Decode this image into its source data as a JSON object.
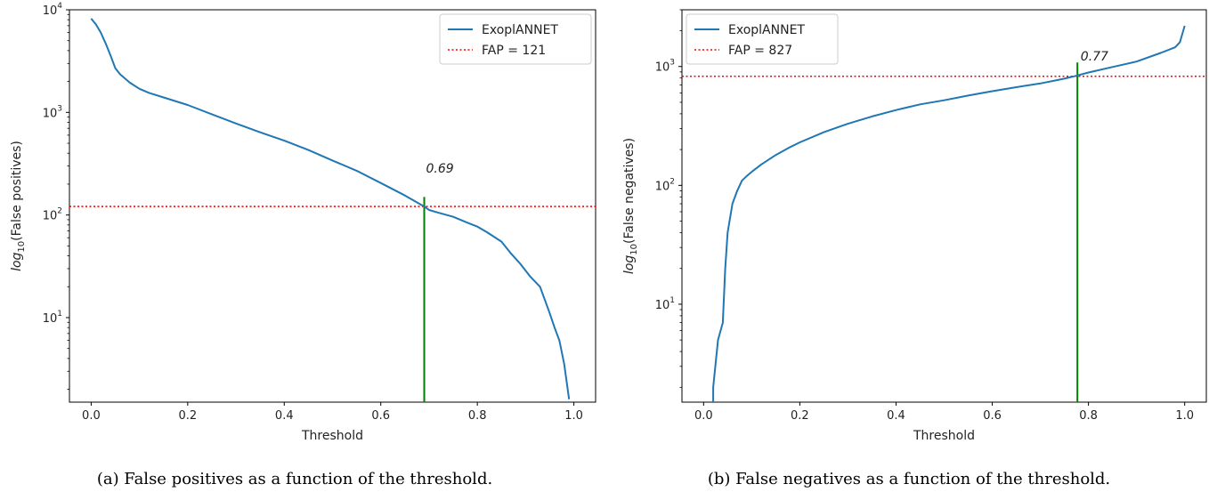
{
  "figures": [
    {
      "caption": "(a) False positives as a function of the threshold."
    },
    {
      "caption": "(b) False negatives as a function of the threshold."
    }
  ],
  "chart_data": [
    {
      "type": "line",
      "xlabel": "Threshold",
      "ylabel_prefix": "log",
      "ylabel_subscript": "10",
      "ylabel_suffix": "(False positives)",
      "xlim": [
        -0.045,
        1.045
      ],
      "ylim": [
        1.5,
        10000
      ],
      "yscale": "log",
      "xticks": [
        0.0,
        0.2,
        0.4,
        0.6,
        0.8,
        1.0
      ],
      "xtick_labels": [
        "0.0",
        "0.2",
        "0.4",
        "0.6",
        "0.8",
        "1.0"
      ],
      "yticks": [
        10,
        100,
        1000,
        10000
      ],
      "ytick_base": "10",
      "ytick_exponents": [
        "1",
        "2",
        "3",
        "4"
      ],
      "grid": false,
      "legend_position": "upper right",
      "series": [
        {
          "name": "ExoplANNET",
          "color": "#1f77b4",
          "x": [
            0.0,
            0.01,
            0.02,
            0.03,
            0.04,
            0.05,
            0.06,
            0.08,
            0.1,
            0.12,
            0.15,
            0.2,
            0.25,
            0.3,
            0.35,
            0.4,
            0.45,
            0.5,
            0.55,
            0.6,
            0.65,
            0.69,
            0.7,
            0.72,
            0.75,
            0.78,
            0.8,
            0.82,
            0.85,
            0.87,
            0.89,
            0.91,
            0.93,
            0.95,
            0.96,
            0.97,
            0.98,
            0.99
          ],
          "y": [
            8200,
            7200,
            6000,
            4700,
            3600,
            2700,
            2350,
            1950,
            1700,
            1550,
            1400,
            1180,
            960,
            780,
            640,
            530,
            430,
            340,
            270,
            205,
            155,
            121,
            112,
            105,
            96,
            84,
            77,
            68,
            55,
            42,
            33,
            25,
            20,
            11,
            8,
            6,
            3.5,
            1.6
          ]
        }
      ],
      "hline": {
        "label": "FAP = 121",
        "value": 121,
        "color": "#ff0000",
        "style": "dotted"
      },
      "vline": {
        "x": 0.69,
        "y_top": 150,
        "color": "#008000"
      },
      "annotation": {
        "text": "0.69",
        "x": 0.69,
        "y": 240
      }
    },
    {
      "type": "line",
      "xlabel": "Threshold",
      "ylabel_prefix": "log",
      "ylabel_subscript": "10",
      "ylabel_suffix": "(False negatives)",
      "xlim": [
        -0.045,
        1.045
      ],
      "ylim": [
        1.5,
        3000
      ],
      "yscale": "log",
      "xticks": [
        0.0,
        0.2,
        0.4,
        0.6,
        0.8,
        1.0
      ],
      "xtick_labels": [
        "0.0",
        "0.2",
        "0.4",
        "0.6",
        "0.8",
        "1.0"
      ],
      "yticks": [
        10,
        100,
        1000
      ],
      "ytick_base": "10",
      "ytick_exponents": [
        "1",
        "2",
        "3"
      ],
      "grid": false,
      "legend_position": "upper left",
      "series": [
        {
          "name": "ExoplANNET",
          "color": "#1f77b4",
          "x": [
            0.02,
            0.02,
            0.03,
            0.04,
            0.045,
            0.05,
            0.06,
            0.07,
            0.08,
            0.09,
            0.1,
            0.12,
            0.15,
            0.18,
            0.2,
            0.25,
            0.3,
            0.35,
            0.4,
            0.45,
            0.5,
            0.55,
            0.6,
            0.65,
            0.7,
            0.75,
            0.77,
            0.8,
            0.85,
            0.9,
            0.95,
            0.98,
            0.99,
            1.0
          ],
          "y": [
            1.5,
            2,
            5,
            7,
            20,
            40,
            70,
            90,
            110,
            120,
            130,
            150,
            180,
            210,
            230,
            280,
            330,
            380,
            430,
            480,
            520,
            570,
            620,
            670,
            720,
            790,
            827,
            890,
            990,
            1100,
            1300,
            1450,
            1600,
            2200
          ]
        }
      ],
      "hline": {
        "label": "FAP = 827",
        "value": 827,
        "color": "#ff0000",
        "style": "dotted"
      },
      "vline": {
        "x": 0.777,
        "y_top": 1080,
        "color": "#008000"
      },
      "annotation": {
        "text": "0.77",
        "x": 0.78,
        "y": 1050
      }
    }
  ]
}
